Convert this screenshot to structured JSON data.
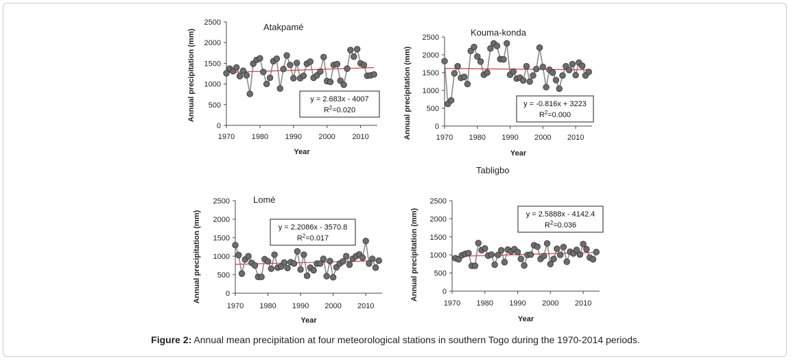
{
  "caption": {
    "label": "Figure 2:",
    "text": "Annual mean precipitation at four meteorological stations in southern Togo during the 1970-2014 periods."
  },
  "colors": {
    "marker": "#6d6d6d",
    "markerStroke": "#2f2f2f",
    "line": "#8a8a8a",
    "trend": "#d93a3a",
    "axis": "#444444"
  },
  "chart_data": [
    {
      "type": "line",
      "title": "Atakpamé",
      "xlabel": "Year",
      "ylabel": "Annual precipitation (mm)",
      "xlim": [
        1970,
        2015
      ],
      "ylim": [
        0,
        2500
      ],
      "xticks": [
        "1970",
        "1980",
        "1990",
        "2000",
        "2010"
      ],
      "yticks": [
        "0",
        "500",
        "1000",
        "1500",
        "2000",
        "2500"
      ],
      "equation": "y = 2.683x - 4007",
      "r2_text": "=0.020",
      "trend": {
        "slope": 2.683,
        "intercept": -4007
      },
      "x": [
        1970,
        1971,
        1972,
        1973,
        1974,
        1975,
        1976,
        1977,
        1978,
        1979,
        1980,
        1981,
        1982,
        1983,
        1984,
        1985,
        1986,
        1987,
        1988,
        1989,
        1990,
        1991,
        1992,
        1993,
        1994,
        1995,
        1996,
        1997,
        1998,
        1999,
        2000,
        2001,
        2002,
        2003,
        2004,
        2005,
        2006,
        2007,
        2008,
        2009,
        2010,
        2011,
        2012,
        2013,
        2014
      ],
      "y": [
        1260,
        1370,
        1310,
        1400,
        1190,
        1320,
        1210,
        760,
        1490,
        1580,
        1620,
        1290,
        1000,
        1150,
        1550,
        1610,
        890,
        1360,
        1690,
        1460,
        1140,
        1510,
        1140,
        1200,
        1490,
        1540,
        1150,
        1210,
        1300,
        1650,
        1070,
        1050,
        1460,
        1480,
        1080,
        980,
        1370,
        1820,
        1660,
        1840,
        1500,
        1460,
        1200,
        1210,
        1230
      ]
    },
    {
      "type": "line",
      "title": "Kouma-konda",
      "xlabel": "Year",
      "ylabel": "Annual precipitation (mm)",
      "xlim": [
        1970,
        2015
      ],
      "ylim": [
        0,
        2500
      ],
      "xticks": [
        "1970",
        "1980",
        "1990",
        "2000",
        "2010"
      ],
      "yticks": [
        "0",
        "500",
        "1000",
        "1500",
        "2000",
        "2500"
      ],
      "equation": "y = -0.816x + 3223",
      "r2_text": "=0.000",
      "trend": {
        "slope": -0.816,
        "intercept": 3223
      },
      "x": [
        1970,
        1971,
        1972,
        1973,
        1974,
        1975,
        1976,
        1977,
        1978,
        1979,
        1980,
        1981,
        1982,
        1983,
        1984,
        1985,
        1986,
        1987,
        1988,
        1989,
        1990,
        1991,
        1992,
        1993,
        1994,
        1995,
        1996,
        1997,
        1998,
        1999,
        2000,
        2001,
        2002,
        2003,
        2004,
        2005,
        2006,
        2007,
        2008,
        2009,
        2010,
        2011,
        2012,
        2013,
        2014
      ],
      "y": [
        1820,
        620,
        720,
        1480,
        1680,
        1350,
        1380,
        1180,
        2110,
        2220,
        1950,
        1810,
        1440,
        1500,
        2180,
        2320,
        2250,
        1880,
        1870,
        2320,
        1440,
        1530,
        1330,
        1360,
        1280,
        1680,
        1250,
        1420,
        1600,
        2200,
        1660,
        1090,
        1580,
        1500,
        1290,
        1050,
        1420,
        1680,
        1570,
        1740,
        1430,
        1780,
        1690,
        1420,
        1520
      ]
    },
    {
      "type": "line",
      "title": "Lomé",
      "xlabel": "Year",
      "ylabel": "Annual precipitation (mm)",
      "xlim": [
        1970,
        2015
      ],
      "ylim": [
        0,
        2500
      ],
      "xticks": [
        "1970",
        "1980",
        "1990",
        "2000",
        "2010"
      ],
      "yticks": [
        "0",
        "500",
        "1000",
        "1500",
        "2000",
        "2500"
      ],
      "equation": "y = 2.2086x - 3570.8",
      "r2_text": "=0.017",
      "trend": {
        "slope": 2.2086,
        "intercept": -3570.8
      },
      "x": [
        1970,
        1971,
        1972,
        1973,
        1974,
        1975,
        1976,
        1977,
        1978,
        1979,
        1980,
        1981,
        1982,
        1983,
        1984,
        1985,
        1986,
        1987,
        1988,
        1989,
        1990,
        1991,
        1992,
        1993,
        1994,
        1995,
        1996,
        1997,
        1998,
        1999,
        2000,
        2001,
        2002,
        2003,
        2004,
        2005,
        2006,
        2007,
        2008,
        2009,
        2010,
        2011,
        2012,
        2013,
        2014
      ],
      "y": [
        1300,
        1030,
        530,
        910,
        1000,
        820,
        750,
        440,
        440,
        920,
        860,
        660,
        1040,
        690,
        720,
        830,
        680,
        840,
        800,
        1130,
        640,
        1040,
        470,
        690,
        620,
        800,
        800,
        930,
        460,
        870,
        430,
        700,
        800,
        860,
        1000,
        770,
        930,
        1000,
        1050,
        960,
        1410,
        800,
        930,
        690,
        880
      ]
    },
    {
      "type": "line",
      "title": "Tabligbo",
      "xlabel": "Year",
      "ylabel": "Annual precipitation (mm)",
      "xlim": [
        1970,
        2015
      ],
      "ylim": [
        0,
        2500
      ],
      "xticks": [
        "1970",
        "1980",
        "1990",
        "2000",
        "2010"
      ],
      "yticks": [
        "0",
        "500",
        "1000",
        "1500",
        "2000",
        "2500"
      ],
      "equation": "y = 2.5888x - 4142.4",
      "r2_text": "=0.036",
      "trend": {
        "slope": 2.5888,
        "intercept": -4142.4
      },
      "x": [
        1971,
        1972,
        1973,
        1974,
        1975,
        1976,
        1977,
        1978,
        1979,
        1980,
        1981,
        1982,
        1983,
        1984,
        1985,
        1986,
        1987,
        1988,
        1989,
        1990,
        1991,
        1992,
        1993,
        1994,
        1995,
        1996,
        1997,
        1998,
        1999,
        2000,
        2001,
        2002,
        2003,
        2004,
        2005,
        2006,
        2007,
        2008,
        2009,
        2010,
        2011,
        2012,
        2013,
        2014
      ],
      "y": [
        910,
        880,
        990,
        1030,
        1050,
        700,
        700,
        1330,
        1130,
        1180,
        980,
        1010,
        730,
        1000,
        1130,
        800,
        1150,
        1100,
        1160,
        1080,
        890,
        710,
        1000,
        1010,
        1270,
        1230,
        890,
        970,
        1320,
        750,
        890,
        1170,
        1000,
        1220,
        810,
        1090,
        1040,
        1140,
        1010,
        1300,
        1160,
        930,
        880,
        1080
      ]
    }
  ]
}
